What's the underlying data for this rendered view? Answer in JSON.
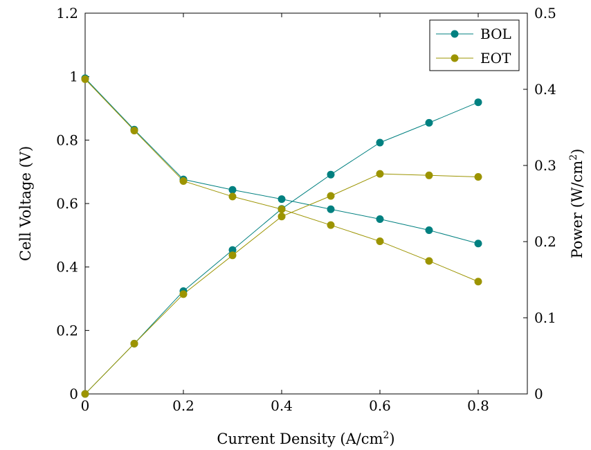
{
  "chart_data": {
    "type": "line",
    "xlabel": "Current Density (A/cm",
    "xlabel_sup": "2",
    "xlabel_tail": ")",
    "ylabel_left": "Cell Voltage (V)",
    "ylabel_right": "Power (W/cm",
    "ylabel_right_sup": "2",
    "ylabel_right_tail": ")",
    "xlim": [
      0,
      0.9
    ],
    "ylim_left": [
      0,
      1.2
    ],
    "ylim_right": [
      0,
      0.5
    ],
    "xticks": [
      "0",
      "0.2",
      "0.4",
      "0.6",
      "0.8"
    ],
    "yticks_left": [
      "0",
      "0.2",
      "0.4",
      "0.6",
      "0.8",
      "1",
      "1.2"
    ],
    "yticks_right": [
      "0",
      "0.1",
      "0.2",
      "0.3",
      "0.4",
      "0.5"
    ],
    "grid": false,
    "legend_position": "top-right",
    "x": [
      0,
      0.1,
      0.2,
      0.3,
      0.4,
      0.5,
      0.6,
      0.7,
      0.8
    ],
    "series": [
      {
        "name": "BOL",
        "color": "#008080",
        "voltage": [
          0.995,
          0.833,
          0.676,
          0.643,
          0.614,
          0.582,
          0.551,
          0.516,
          0.474
        ],
        "power": [
          0,
          0.066,
          0.135,
          0.189,
          0.243,
          0.288,
          0.33,
          0.356,
          0.383
        ]
      },
      {
        "name": "EOT",
        "color": "#9c9400",
        "voltage": [
          0.992,
          0.83,
          0.671,
          0.622,
          0.582,
          0.532,
          0.481,
          0.419,
          0.354
        ],
        "power": [
          0,
          0.066,
          0.131,
          0.182,
          0.233,
          0.26,
          0.289,
          0.287,
          0.285
        ]
      }
    ]
  }
}
